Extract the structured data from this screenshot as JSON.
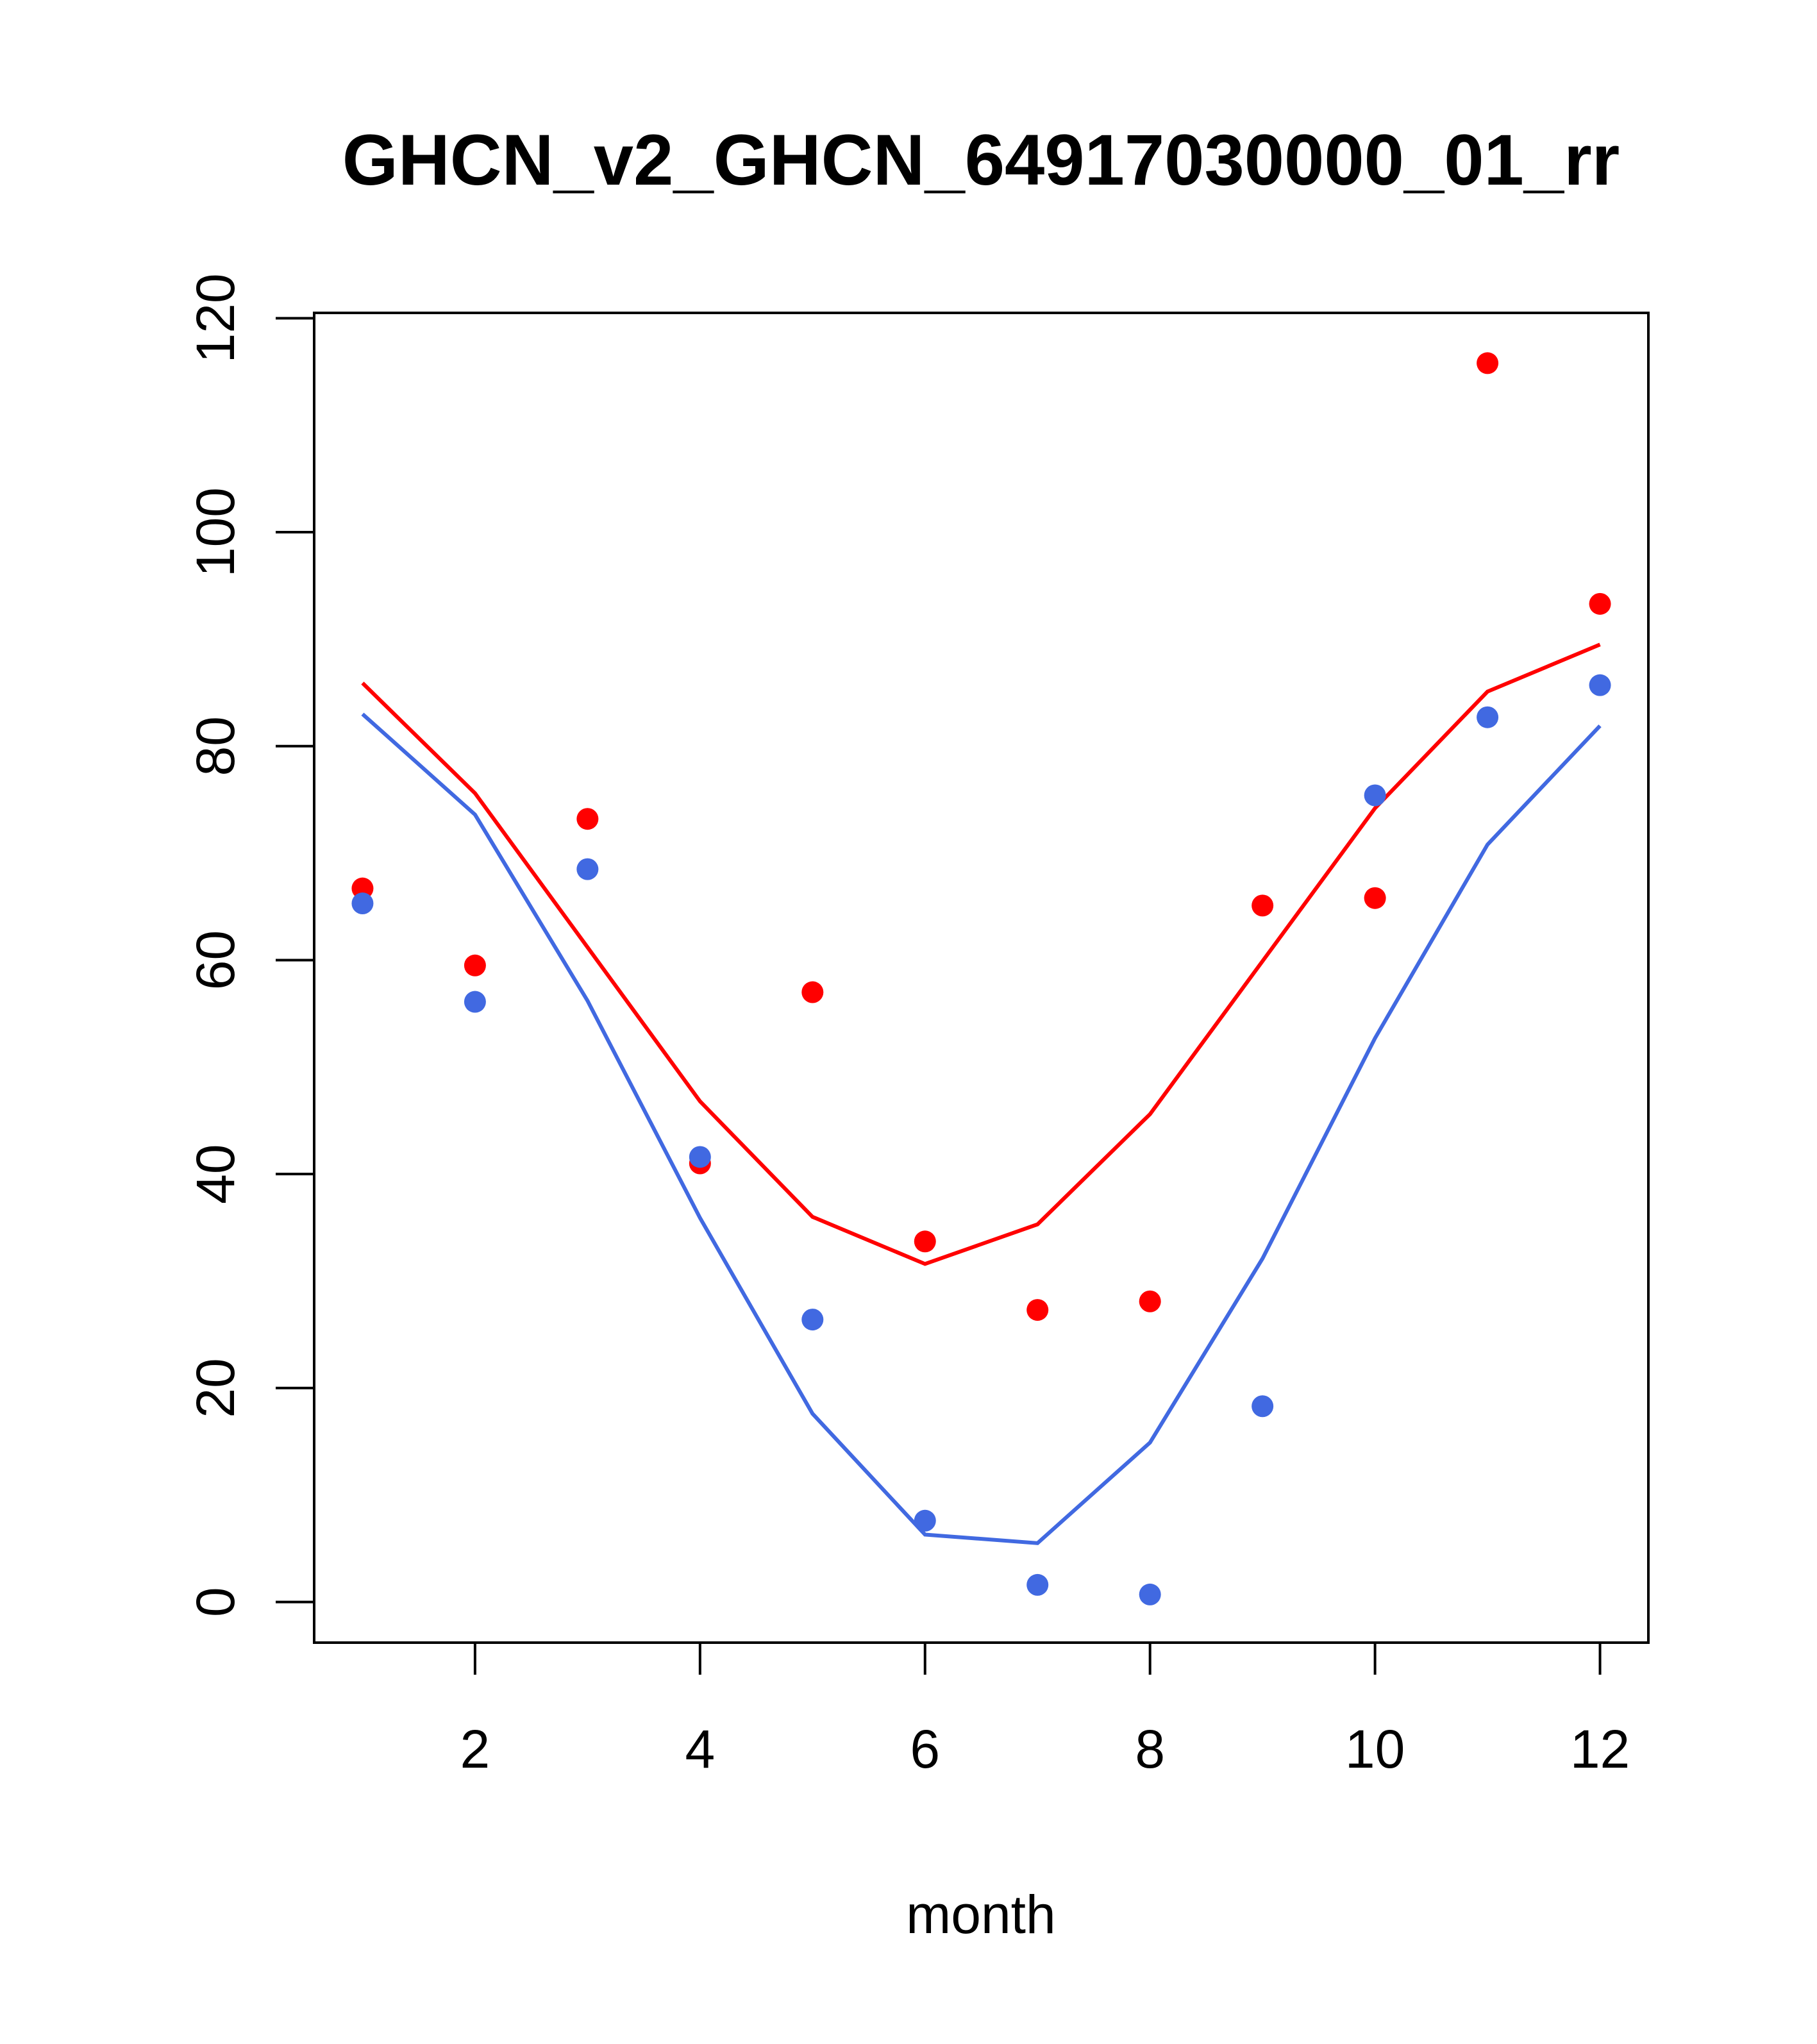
{
  "chart_data": {
    "type": "scatter",
    "title": "GHCN_v2_GHCN_64917030000_01_rr",
    "xlabel": "month",
    "ylabel": "",
    "xlim": [
      0.57,
      12.43
    ],
    "ylim": [
      -3.8,
      120.5
    ],
    "xticks": [
      2,
      4,
      6,
      8,
      10,
      12
    ],
    "yticks": [
      0,
      20,
      40,
      60,
      80,
      100,
      120
    ],
    "grid": false,
    "x": [
      1,
      2,
      3,
      4,
      5,
      6,
      7,
      8,
      9,
      10,
      11,
      12
    ],
    "series": [
      {
        "name": "red points",
        "kind": "points",
        "color": "#FF0000",
        "values": [
          66.7,
          59.5,
          73.2,
          41.0,
          57.0,
          33.7,
          27.3,
          28.1,
          65.1,
          65.8,
          115.8,
          93.3
        ]
      },
      {
        "name": "blue points",
        "kind": "points",
        "color": "#4169E1",
        "values": [
          65.3,
          56.1,
          68.5,
          41.6,
          26.4,
          7.6,
          1.6,
          0.7,
          18.3,
          75.4,
          82.7,
          85.7
        ]
      },
      {
        "name": "red line",
        "kind": "line",
        "color": "#FF0000",
        "values": [
          85.9,
          75.6,
          61.2,
          46.8,
          36.0,
          31.6,
          35.3,
          45.6,
          59.9,
          74.2,
          85.1,
          89.5
        ]
      },
      {
        "name": "blue line",
        "kind": "line",
        "color": "#4169E1",
        "values": [
          83.0,
          73.6,
          56.2,
          35.9,
          17.6,
          6.3,
          5.5,
          14.9,
          32.1,
          52.7,
          70.8,
          81.9
        ]
      }
    ]
  }
}
